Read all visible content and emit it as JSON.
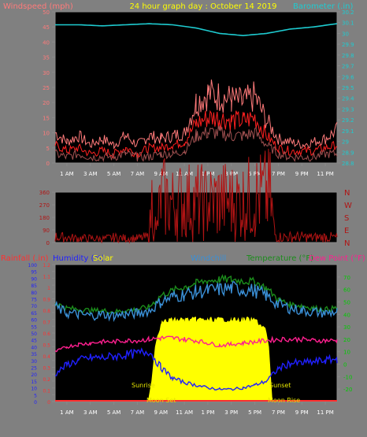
{
  "colors": {
    "background": "#808080",
    "plot_bg": "#000000",
    "axis": "#8a8a8a",
    "windspeed": "#ff7a7a",
    "wind_avg": "#ff2020",
    "wind_low": "#a05050",
    "barometer": "#1ecbd0",
    "direction": "#b01414",
    "rainfall": "#ff3030",
    "humidity": "#2020ff",
    "solar": "#ffff00",
    "windchill": "#3a8fd6",
    "temperature": "#1b8c1b",
    "dewpoint": "#ff1f8f",
    "right_axis_temp": "#00cc00",
    "x_labels": "#ffffff",
    "event_labels": "#e6e600"
  },
  "header": {
    "left_axis_label": "Windspeed (mph)",
    "title": "24 hour graph day : October 14 2019",
    "right_axis_label": "Barometer (.in)"
  },
  "x_labels": [
    "1 AM",
    "3 AM",
    "5 AM",
    "7 AM",
    "9 AM",
    "11 AM",
    "1 PM",
    "3 PM",
    "5 PM",
    "7 PM",
    "9 PM",
    "11 PM"
  ],
  "bottom_legend": {
    "rainfall": "Rainfall (.in)",
    "humidity": "Humidity (%)",
    "solar": "Solar",
    "windchill": "Windchill",
    "temperature": "Temperature (°F)",
    "dewpoint": "Dew Point (°F)"
  },
  "events": {
    "sunrise": "Sunrise",
    "moonset": "Moon Set",
    "sunset": "Sunset",
    "moonrise": "Moon Rise"
  },
  "chart_data": [
    {
      "type": "line",
      "name": "wind_and_barometer",
      "x_unit": "hour",
      "xlim": [
        0,
        24
      ],
      "y_left": {
        "ylim": [
          0,
          50
        ],
        "ticks": [
          0,
          5,
          10,
          15,
          20,
          25,
          30,
          35,
          40,
          45,
          50
        ]
      },
      "y_right": {
        "ylim": [
          28.8,
          30.2
        ],
        "ticks": [
          "28.8",
          "28.9",
          "29",
          "29.1",
          "29.2",
          "29.3",
          "29.4",
          "29.5",
          "29.6",
          "29.7",
          "29.8",
          "29.9",
          "30",
          "30.1",
          "30.2"
        ]
      },
      "series": [
        {
          "key": "gust",
          "x": [
            0,
            1,
            2,
            3,
            4,
            5,
            6,
            7,
            8,
            9,
            10,
            11,
            12,
            13,
            14,
            15,
            16,
            17,
            18,
            19,
            20,
            21,
            22,
            23,
            24
          ],
          "values": [
            10,
            7,
            9,
            6,
            8,
            6,
            9,
            6,
            9,
            8,
            9,
            10,
            20,
            23,
            22,
            21,
            20,
            22,
            14,
            8,
            7,
            6,
            7,
            8,
            11
          ]
        },
        {
          "key": "avg",
          "x": [
            0,
            1,
            2,
            3,
            4,
            5,
            6,
            7,
            8,
            9,
            10,
            11,
            12,
            13,
            14,
            15,
            16,
            17,
            18,
            19,
            20,
            21,
            22,
            23,
            24
          ],
          "values": [
            6,
            4,
            5,
            3,
            4,
            3,
            5,
            3,
            5,
            5,
            6,
            7,
            13,
            15,
            15,
            14,
            14,
            15,
            9,
            5,
            4,
            4,
            4,
            5,
            6
          ]
        },
        {
          "key": "low",
          "x": [
            0,
            1,
            2,
            3,
            4,
            5,
            6,
            7,
            8,
            9,
            10,
            11,
            12,
            13,
            14,
            15,
            16,
            17,
            18,
            19,
            20,
            21,
            22,
            23,
            24
          ],
          "values": [
            3,
            2,
            3,
            2,
            2,
            2,
            3,
            2,
            2,
            3,
            3,
            4,
            9,
            10,
            10,
            9,
            9,
            10,
            6,
            3,
            2,
            2,
            2,
            3,
            3
          ]
        },
        {
          "key": "barometer",
          "axis": "right",
          "x": [
            0,
            2,
            4,
            6,
            8,
            10,
            12,
            14,
            16,
            18,
            20,
            22,
            24
          ],
          "values": [
            30.08,
            30.08,
            30.07,
            30.08,
            30.09,
            30.08,
            30.05,
            30.0,
            29.98,
            30.0,
            30.04,
            30.06,
            30.09
          ]
        }
      ]
    },
    {
      "type": "line",
      "name": "wind_direction",
      "xlim": [
        0,
        24
      ],
      "ylim": [
        0,
        360
      ],
      "ticks": [
        0,
        90,
        180,
        270,
        360
      ],
      "compass_labels": [
        "N",
        "W",
        "S",
        "E",
        "N"
      ],
      "series": [
        {
          "key": "direction",
          "x": [
            0,
            1,
            2,
            3,
            4,
            5,
            6,
            7,
            8,
            8.3,
            8.6,
            9,
            10,
            11,
            12,
            13,
            14,
            15,
            16,
            17,
            18,
            18.3,
            18.7,
            19,
            20,
            21,
            22,
            23,
            24
          ],
          "values": [
            40,
            35,
            30,
            30,
            25,
            35,
            30,
            30,
            40,
            360,
            60,
            330,
            280,
            300,
            290,
            280,
            310,
            290,
            300,
            330,
            340,
            340,
            60,
            40,
            40,
            40,
            35,
            40,
            35
          ]
        }
      ]
    },
    {
      "type": "line",
      "name": "temp_humidity_solar",
      "xlim": [
        0,
        24
      ],
      "y_left": {
        "ylim": [
          0,
          100
        ],
        "ticks": [
          0,
          5,
          10,
          15,
          20,
          25,
          30,
          35,
          40,
          45,
          50,
          55,
          60,
          65,
          70,
          75,
          80,
          85,
          90,
          95,
          100
        ]
      },
      "y_left_rain": {
        "ylim": [
          0,
          1.2
        ],
        "ticks": [
          "0",
          "0.1",
          "0.2",
          "0.3",
          "0.4",
          "0.5",
          "0.6",
          "0.7",
          "0.8",
          "0.9",
          "1",
          "1.1",
          "1.2"
        ]
      },
      "y_right": {
        "ylim": [
          -30,
          80
        ],
        "ticks": [
          -20,
          -10,
          0,
          10,
          20,
          30,
          40,
          50,
          60,
          70
        ]
      },
      "series": [
        {
          "key": "temperature",
          "axis": "right",
          "x": [
            0,
            1,
            2,
            3,
            4,
            5,
            6,
            7,
            8,
            9,
            10,
            11,
            12,
            13,
            14,
            15,
            16,
            17,
            18,
            19,
            20,
            21,
            22,
            23,
            24
          ],
          "values": [
            49,
            45,
            44,
            43,
            43,
            42,
            43,
            44,
            46,
            55,
            59,
            62,
            65,
            67,
            68,
            68,
            67,
            66,
            61,
            52,
            48,
            47,
            45,
            44,
            45
          ]
        },
        {
          "key": "windchill",
          "axis": "right",
          "x": [
            0,
            1,
            2,
            3,
            4,
            5,
            6,
            7,
            8,
            9,
            10,
            11,
            12,
            13,
            14,
            15,
            16,
            17,
            18,
            19,
            20,
            21,
            22,
            23,
            24
          ],
          "values": [
            46,
            41,
            40,
            39,
            40,
            39,
            40,
            41,
            43,
            50,
            54,
            56,
            58,
            59,
            60,
            61,
            60,
            59,
            55,
            48,
            45,
            43,
            42,
            41,
            42
          ]
        },
        {
          "key": "dewpoint",
          "axis": "right",
          "x": [
            0,
            1,
            2,
            3,
            4,
            5,
            6,
            7,
            8,
            9,
            10,
            11,
            12,
            13,
            14,
            15,
            16,
            17,
            18,
            19,
            20,
            21,
            22,
            23,
            24
          ],
          "values": [
            10,
            14,
            16,
            17,
            18,
            18,
            19,
            19,
            20,
            21,
            21,
            20,
            19,
            17,
            15,
            16,
            17,
            18,
            19,
            20,
            20,
            20,
            19,
            19,
            19
          ]
        },
        {
          "key": "humidity",
          "axis": "left",
          "x": [
            0,
            1,
            2,
            3,
            4,
            5,
            6,
            7,
            8,
            9,
            10,
            11,
            12,
            13,
            14,
            15,
            16,
            17,
            18,
            19,
            20,
            21,
            22,
            23,
            24
          ],
          "values": [
            20,
            27,
            30,
            32,
            32,
            33,
            34,
            35,
            37,
            25,
            17,
            14,
            12,
            10,
            9,
            9,
            10,
            12,
            15,
            24,
            28,
            28,
            29,
            30,
            31
          ]
        },
        {
          "key": "solar",
          "axis": "left",
          "x": [
            0,
            7.9,
            8.2,
            8.5,
            9,
            10,
            11,
            12,
            13,
            14,
            15,
            16,
            17,
            17.9,
            18.2,
            18.5,
            24
          ],
          "values": [
            0,
            0,
            15,
            40,
            60,
            62,
            62,
            62,
            62,
            62,
            62,
            62,
            62,
            55,
            40,
            0,
            0
          ]
        }
      ]
    }
  ]
}
